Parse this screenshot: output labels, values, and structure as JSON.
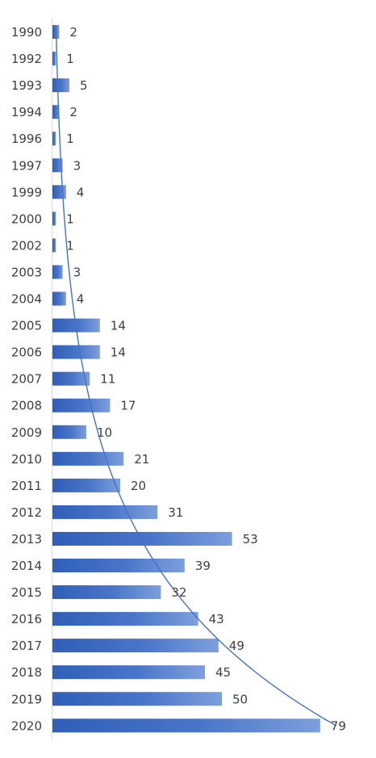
{
  "chart_data": {
    "type": "bar",
    "orientation": "horizontal",
    "categories": [
      "1990",
      "1992",
      "1993",
      "1994",
      "1996",
      "1997",
      "1999",
      "2000",
      "2002",
      "2003",
      "2004",
      "2005",
      "2006",
      "2007",
      "2008",
      "2009",
      "2010",
      "2011",
      "2012",
      "2013",
      "2014",
      "2015",
      "2016",
      "2017",
      "2018",
      "2019",
      "2020"
    ],
    "values": [
      2,
      1,
      5,
      2,
      1,
      3,
      4,
      1,
      1,
      3,
      4,
      14,
      14,
      11,
      17,
      10,
      21,
      20,
      31,
      53,
      39,
      32,
      43,
      49,
      45,
      50,
      79
    ],
    "data_labels": [
      "2",
      "1",
      "5",
      "2",
      "1",
      "3",
      "4",
      "1",
      "1",
      "3",
      "4",
      "14",
      "14",
      "11",
      "17",
      "10",
      "21",
      "20",
      "31",
      "53",
      "39",
      "32",
      "43",
      "49",
      "45",
      "50",
      "79"
    ],
    "trendline": {
      "type": "exponential"
    },
    "grid": false,
    "legend": "none",
    "xlim": [
      0,
      85
    ],
    "colors": {
      "bar_start": "#2f5fb8",
      "bar_end": "#7c9fdc",
      "trendline": "#4472c4",
      "axis": "#d9d9d9",
      "text": "#404040"
    }
  }
}
